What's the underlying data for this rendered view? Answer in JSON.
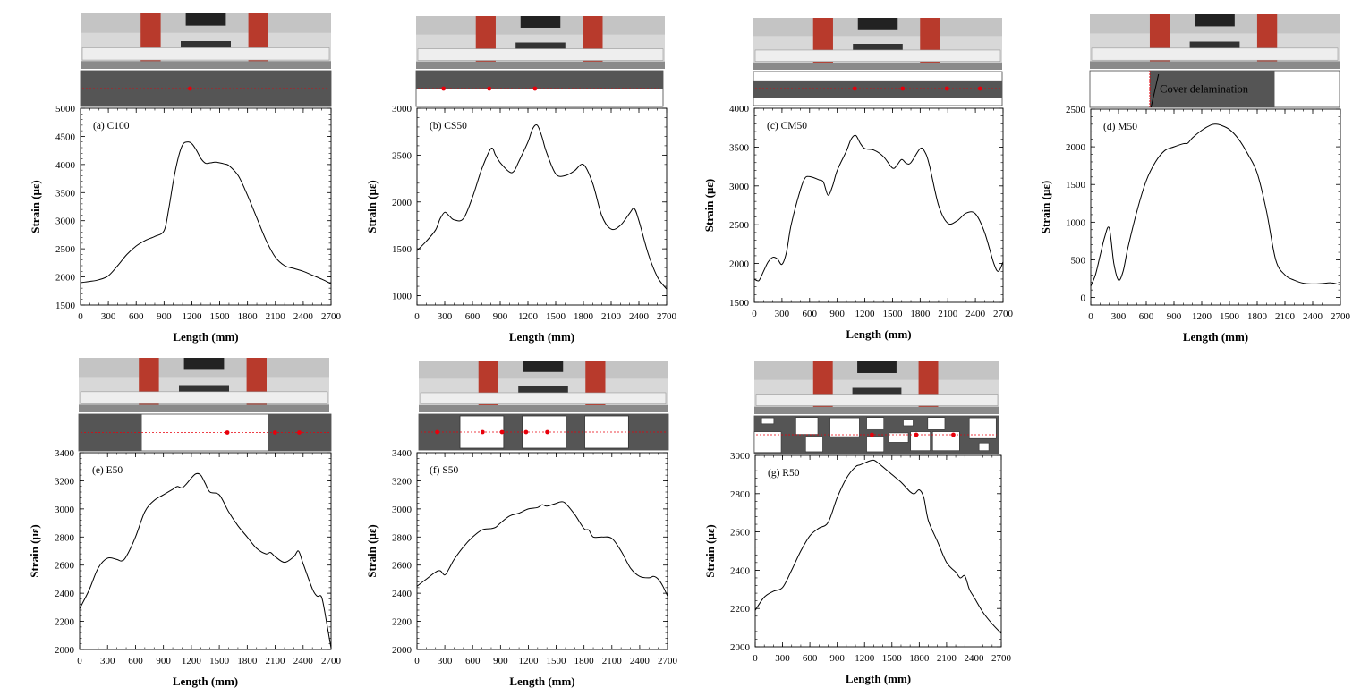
{
  "figure": {
    "colors": {
      "line": "#000000",
      "strip": "#555555",
      "marker": "#e8000b",
      "photo_bg": "#d8d8d8",
      "column": "#b83a2c",
      "beam": "#eeeeee"
    }
  },
  "chart_data": [
    {
      "id": "a",
      "type": "line",
      "title": "(a) C100",
      "xlabel": "Length (mm)",
      "ylabel": "Strain (με)",
      "xlim": [
        0,
        2700
      ],
      "ylim": [
        1500,
        5000
      ],
      "xticks": [
        0,
        300,
        600,
        900,
        1200,
        1500,
        1800,
        2100,
        2400,
        2700
      ],
      "yticks": [
        1500,
        2000,
        2500,
        3000,
        3500,
        4000,
        4500,
        5000
      ],
      "strip": {
        "style": "full",
        "markers_mm": [
          1180
        ]
      },
      "x": [
        0,
        100,
        200,
        300,
        400,
        500,
        600,
        700,
        800,
        900,
        950,
        1000,
        1050,
        1100,
        1150,
        1200,
        1250,
        1300,
        1350,
        1400,
        1450,
        1500,
        1550,
        1600,
        1700,
        1800,
        1900,
        2000,
        2100,
        2200,
        2300,
        2400,
        2500,
        2600,
        2700
      ],
      "y": [
        1900,
        1920,
        1950,
        2020,
        2200,
        2400,
        2550,
        2650,
        2720,
        2820,
        3200,
        3700,
        4100,
        4350,
        4400,
        4370,
        4250,
        4100,
        4020,
        4030,
        4040,
        4030,
        4010,
        3980,
        3800,
        3450,
        3050,
        2650,
        2350,
        2200,
        2150,
        2100,
        2030,
        1960,
        1880
      ]
    },
    {
      "id": "b",
      "type": "line",
      "title": "(b) CS50",
      "xlabel": "Length (mm)",
      "ylabel": "Strain (με)",
      "xlim": [
        0,
        2700
      ],
      "ylim": [
        900,
        3000
      ],
      "xticks": [
        0,
        300,
        600,
        900,
        1200,
        1500,
        1800,
        2100,
        2400,
        2700
      ],
      "yticks": [
        1000,
        1500,
        2000,
        2500,
        3000
      ],
      "strip": {
        "style": "top",
        "markers_mm": [
          300,
          800,
          1300
        ]
      },
      "x": [
        0,
        100,
        200,
        250,
        300,
        350,
        400,
        500,
        600,
        700,
        800,
        850,
        900,
        1000,
        1050,
        1100,
        1200,
        1250,
        1300,
        1350,
        1400,
        1500,
        1600,
        1700,
        1800,
        1900,
        2000,
        2100,
        2200,
        2300,
        2350,
        2400,
        2500,
        2600,
        2700
      ],
      "y": [
        1480,
        1580,
        1700,
        1820,
        1890,
        1850,
        1810,
        1820,
        2050,
        2350,
        2570,
        2500,
        2420,
        2320,
        2330,
        2430,
        2640,
        2780,
        2820,
        2700,
        2530,
        2300,
        2280,
        2330,
        2400,
        2200,
        1850,
        1710,
        1750,
        1880,
        1930,
        1800,
        1450,
        1200,
        1070
      ]
    },
    {
      "id": "c",
      "type": "line",
      "title": "(c) CM50",
      "xlabel": "Length (mm)",
      "ylabel": "Strain (με)",
      "xlim": [
        0,
        2700
      ],
      "ylim": [
        1500,
        4000
      ],
      "xticks": [
        0,
        300,
        600,
        900,
        1200,
        1500,
        1800,
        2100,
        2400,
        2700
      ],
      "yticks": [
        1500,
        2000,
        2500,
        3000,
        3500,
        4000
      ],
      "strip": {
        "style": "middle",
        "markers_mm": [
          1100,
          1620,
          2100,
          2460
        ]
      },
      "x": [
        0,
        50,
        100,
        150,
        200,
        250,
        300,
        350,
        400,
        500,
        550,
        600,
        700,
        750,
        800,
        850,
        900,
        1000,
        1050,
        1100,
        1150,
        1200,
        1300,
        1400,
        1500,
        1550,
        1600,
        1650,
        1700,
        1800,
        1850,
        1900,
        2000,
        2100,
        2200,
        2300,
        2400,
        2500,
        2600,
        2650,
        2700
      ],
      "y": [
        1800,
        1780,
        1900,
        2020,
        2080,
        2060,
        1990,
        2150,
        2500,
        2950,
        3100,
        3120,
        3080,
        3050,
        2880,
        3000,
        3200,
        3450,
        3600,
        3650,
        3550,
        3480,
        3460,
        3380,
        3230,
        3270,
        3340,
        3290,
        3300,
        3480,
        3440,
        3270,
        2750,
        2520,
        2550,
        2650,
        2640,
        2400,
        2000,
        1900,
        2020
      ]
    },
    {
      "id": "d",
      "type": "line",
      "title": "(d) M50",
      "xlabel": "Length (mm)",
      "ylabel": "Strain (με)",
      "xlim": [
        0,
        2700
      ],
      "ylim": [
        -100,
        2500
      ],
      "xticks": [
        0,
        300,
        600,
        900,
        1200,
        1500,
        1800,
        2100,
        2400,
        2700
      ],
      "yticks": [
        0,
        500,
        1000,
        1500,
        2000,
        2500
      ],
      "strip": {
        "style": "delamination",
        "markers_mm": [],
        "note": "Cover delamination"
      },
      "x": [
        0,
        50,
        100,
        150,
        200,
        250,
        300,
        350,
        400,
        500,
        600,
        700,
        800,
        900,
        1000,
        1050,
        1100,
        1200,
        1300,
        1350,
        1400,
        1500,
        1600,
        1700,
        1800,
        1900,
        2000,
        2100,
        2200,
        2300,
        2400,
        2500,
        2600,
        2700
      ],
      "y": [
        150,
        300,
        550,
        800,
        920,
        450,
        230,
        350,
        650,
        1150,
        1550,
        1800,
        1950,
        2000,
        2040,
        2050,
        2120,
        2220,
        2290,
        2300,
        2290,
        2230,
        2100,
        1900,
        1650,
        1150,
        500,
        300,
        230,
        190,
        180,
        185,
        195,
        170
      ]
    },
    {
      "id": "e",
      "type": "line",
      "title": "(e) E50",
      "xlabel": "Length (mm)",
      "ylabel": "Strain (με)",
      "xlim": [
        0,
        2700
      ],
      "ylim": [
        2000,
        3400
      ],
      "xticks": [
        0,
        300,
        600,
        900,
        1200,
        1500,
        1800,
        2100,
        2400,
        2700
      ],
      "yticks": [
        2000,
        2200,
        2400,
        2600,
        2800,
        3000,
        3200,
        3400
      ],
      "strip": {
        "style": "end-notches",
        "markers_mm": [
          1590,
          2100,
          2360
        ]
      },
      "x": [
        0,
        100,
        200,
        300,
        400,
        450,
        500,
        600,
        700,
        800,
        900,
        1000,
        1050,
        1100,
        1150,
        1200,
        1250,
        1300,
        1350,
        1400,
        1500,
        1600,
        1700,
        1800,
        1900,
        2000,
        2050,
        2100,
        2200,
        2300,
        2350,
        2400,
        2500,
        2550,
        2600,
        2650,
        2700
      ],
      "y": [
        2290,
        2420,
        2580,
        2650,
        2640,
        2630,
        2660,
        2800,
        2980,
        3060,
        3100,
        3140,
        3160,
        3150,
        3180,
        3220,
        3250,
        3240,
        3180,
        3120,
        3100,
        2980,
        2880,
        2800,
        2720,
        2680,
        2690,
        2660,
        2620,
        2660,
        2700,
        2610,
        2430,
        2380,
        2370,
        2200,
        2010
      ]
    },
    {
      "id": "f",
      "type": "line",
      "title": "(f) S50",
      "xlabel": "Length (mm)",
      "ylabel": "Strain (με)",
      "xlim": [
        0,
        2700
      ],
      "ylim": [
        2000,
        3400
      ],
      "xticks": [
        0,
        300,
        600,
        900,
        1200,
        1500,
        1800,
        2100,
        2400,
        2700
      ],
      "yticks": [
        2000,
        2200,
        2400,
        2600,
        2800,
        3000,
        3200,
        3400
      ],
      "strip": {
        "style": "windows",
        "markers_mm": [
          200,
          690,
          900,
          1160,
          1390
        ]
      },
      "x": [
        0,
        100,
        200,
        250,
        300,
        350,
        400,
        500,
        600,
        700,
        800,
        850,
        900,
        1000,
        1100,
        1200,
        1300,
        1350,
        1400,
        1500,
        1550,
        1600,
        1700,
        1800,
        1850,
        1900,
        2000,
        2100,
        2200,
        2300,
        2400,
        2500,
        2550,
        2600,
        2650,
        2700
      ],
      "y": [
        2450,
        2500,
        2550,
        2560,
        2530,
        2580,
        2640,
        2730,
        2800,
        2850,
        2860,
        2870,
        2900,
        2950,
        2970,
        3000,
        3010,
        3030,
        3020,
        3040,
        3050,
        3040,
        2960,
        2860,
        2850,
        2800,
        2800,
        2790,
        2700,
        2580,
        2520,
        2510,
        2520,
        2500,
        2450,
        2380
      ]
    },
    {
      "id": "g",
      "type": "line",
      "title": "(g) R50",
      "xlabel": "Length (mm)",
      "ylabel": "Strain (με)",
      "xlim": [
        0,
        2700
      ],
      "ylim": [
        2000,
        3000
      ],
      "xticks": [
        0,
        300,
        600,
        900,
        1200,
        1500,
        1800,
        2100,
        2400,
        2700
      ],
      "yticks": [
        2000,
        2200,
        2400,
        2600,
        2800,
        3000
      ],
      "strip": {
        "style": "random",
        "markers_mm": [
          1300,
          1790,
          2200
        ]
      },
      "x": [
        0,
        100,
        200,
        300,
        400,
        500,
        600,
        700,
        800,
        900,
        1000,
        1100,
        1150,
        1200,
        1250,
        1300,
        1350,
        1400,
        1500,
        1600,
        1700,
        1750,
        1800,
        1850,
        1900,
        2000,
        2100,
        2200,
        2250,
        2300,
        2350,
        2400,
        2500,
        2600,
        2700
      ],
      "y": [
        2190,
        2260,
        2290,
        2310,
        2400,
        2500,
        2580,
        2620,
        2650,
        2780,
        2880,
        2940,
        2950,
        2960,
        2970,
        2975,
        2960,
        2940,
        2900,
        2860,
        2810,
        2800,
        2820,
        2780,
        2660,
        2550,
        2440,
        2390,
        2360,
        2370,
        2300,
        2260,
        2180,
        2120,
        2070
      ]
    }
  ]
}
